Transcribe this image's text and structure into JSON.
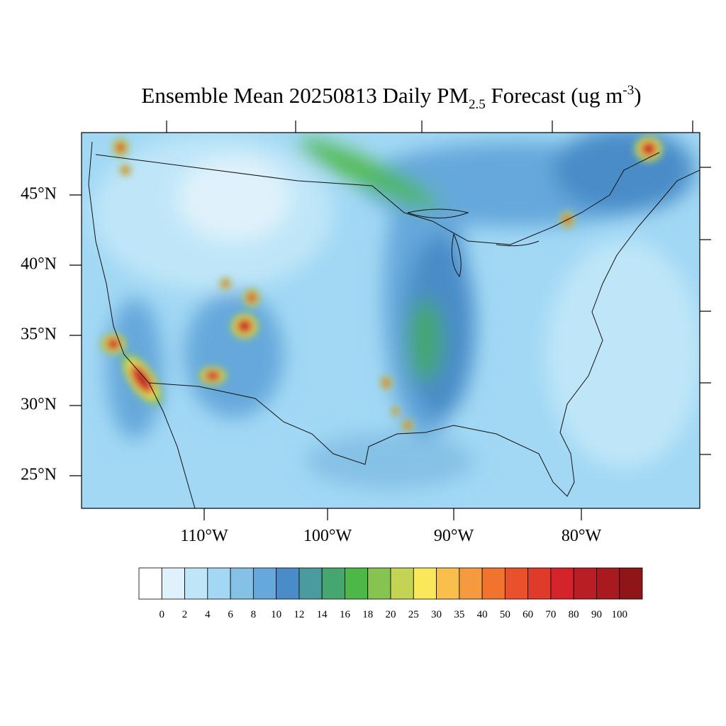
{
  "title": {
    "main": "Ensemble Mean 20250813 Daily PM",
    "subscript": "2.5",
    "middle": " Forecast (ug m",
    "superscript": "-3",
    "end": ")"
  },
  "map": {
    "latitude_labels": [
      "45°N",
      "40°N",
      "35°N",
      "30°N",
      "25°N"
    ],
    "longitude_labels": [
      "110°W",
      "100°W",
      "90°W",
      "80°W"
    ]
  },
  "colorbar": {
    "labels": [
      0,
      2,
      4,
      6,
      8,
      10,
      12,
      14,
      16,
      18,
      20,
      25,
      30,
      35,
      40,
      50,
      60,
      70,
      80,
      90,
      100
    ],
    "colors": [
      "#ffffff",
      "#dff2fb",
      "#bfe6f8",
      "#a2d8f4",
      "#85c1e6",
      "#66a8db",
      "#4a8cc8",
      "#4a9b9e",
      "#45a670",
      "#4db848",
      "#86c350",
      "#c3d455",
      "#f8e85a",
      "#f9bf4c",
      "#f69a3f",
      "#f0732e",
      "#e9502b",
      "#df3a2a",
      "#d4232b",
      "#b91d26",
      "#a81a20",
      "#8e1518"
    ]
  }
}
